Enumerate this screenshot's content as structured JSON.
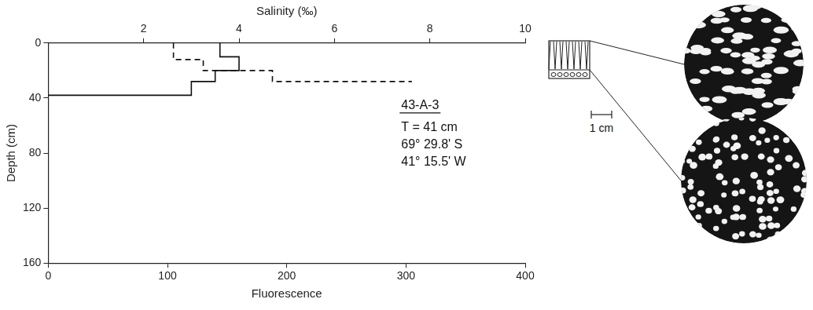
{
  "chart_data": {
    "type": "line",
    "x_label": "Fluorescence",
    "x2_label": "Salinity (‰)",
    "y_label": "Depth (cm)",
    "xlim": [
      0,
      400
    ],
    "xticks": [
      0,
      100,
      200,
      300,
      400
    ],
    "x2lim": [
      0,
      10
    ],
    "x2ticks": [
      2,
      4,
      6,
      8,
      10
    ],
    "ylim": [
      160,
      0
    ],
    "yticks": [
      0,
      40,
      80,
      120,
      160
    ],
    "grid": false,
    "series": [
      {
        "name": "Salinity",
        "axis": "x2",
        "color": "#111111",
        "line_style": "solid",
        "x": [
          3.6,
          3.6,
          4.0,
          4.0,
          3.5,
          3.5,
          3.0,
          3.0,
          0
        ],
        "y": [
          0,
          10,
          10,
          20,
          20,
          28,
          28,
          38,
          38
        ]
      },
      {
        "name": "Fluorescence",
        "color": "#111111",
        "line_style": "dashed",
        "x": [
          105,
          105,
          130,
          130,
          188,
          188,
          305
        ],
        "y": [
          0,
          12,
          12,
          20,
          20,
          28,
          28
        ]
      }
    ],
    "annotations": [
      "43-A-3",
      "T = 41 cm",
      "69° 29.8' S",
      "41° 15.5' W"
    ],
    "core": {
      "scale_label": "1 cm"
    }
  }
}
